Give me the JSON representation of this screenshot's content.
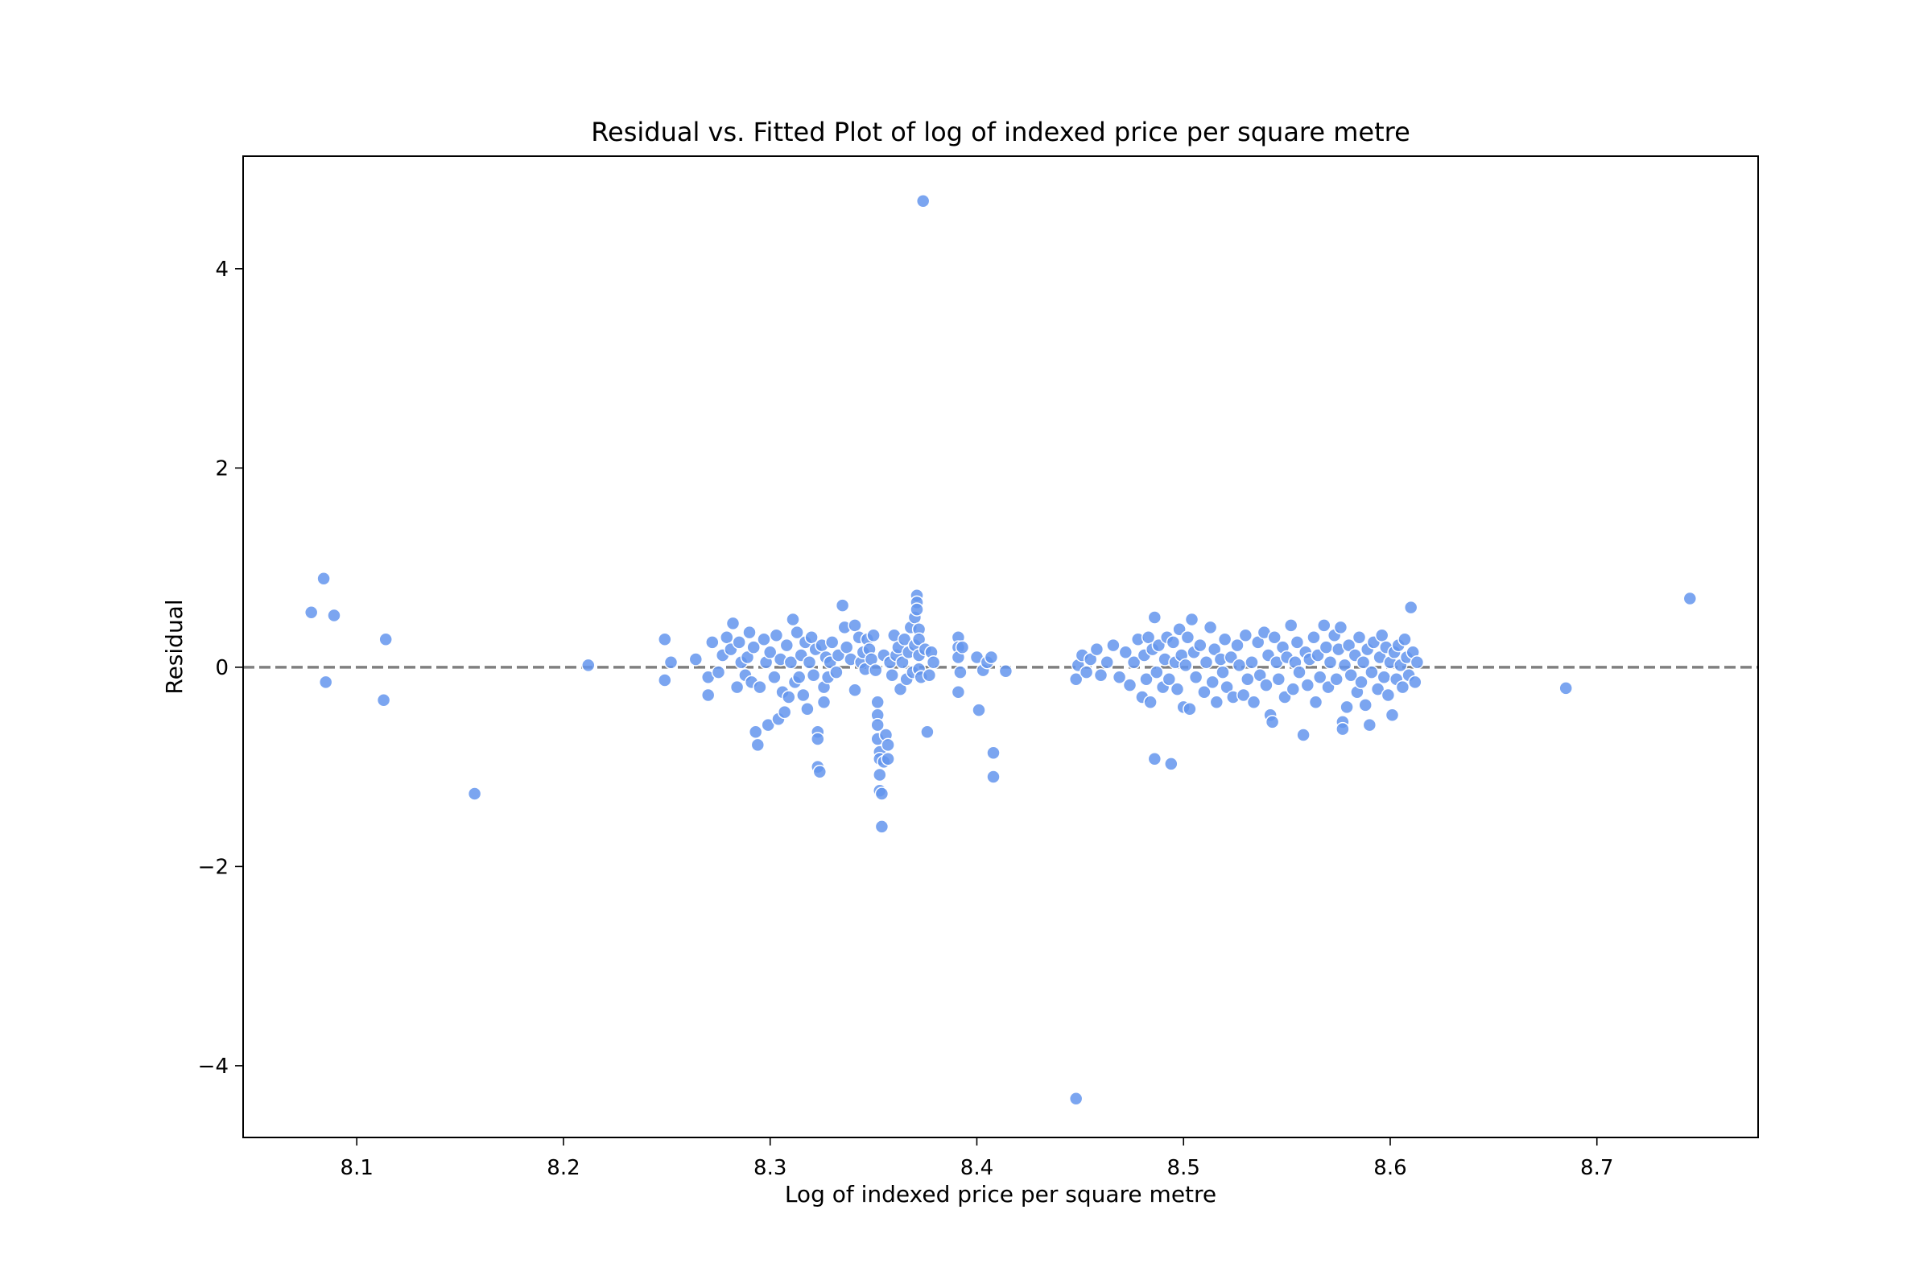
{
  "chart_data": {
    "type": "scatter",
    "title": "Residual vs. Fitted Plot of log of indexed price per square metre",
    "xlabel": "Log of indexed price per square metre",
    "ylabel": "Residual",
    "xlim": [
      8.045,
      8.778
    ],
    "ylim": [
      -4.72,
      5.13
    ],
    "xticks": [
      8.1,
      8.2,
      8.3,
      8.4,
      8.5,
      8.6,
      8.7
    ],
    "xtick_labels": [
      "8.1",
      "8.2",
      "8.3",
      "8.4",
      "8.5",
      "8.6",
      "8.7"
    ],
    "yticks": [
      -4,
      -2,
      0,
      2,
      4
    ],
    "ytick_labels": [
      "−4",
      "−2",
      "0",
      "2",
      "4"
    ],
    "reference_line": {
      "y": 0,
      "style": "dashed",
      "color": "#808080"
    },
    "point_color": "#6495ED",
    "grid": false,
    "legend": "none",
    "points": [
      [
        8.078,
        0.55
      ],
      [
        8.084,
        0.89
      ],
      [
        8.089,
        0.52
      ],
      [
        8.085,
        -0.15
      ],
      [
        8.114,
        0.28
      ],
      [
        8.113,
        -0.33
      ],
      [
        8.157,
        -1.27
      ],
      [
        8.212,
        0.02
      ],
      [
        8.249,
        0.28
      ],
      [
        8.249,
        -0.13
      ],
      [
        8.252,
        0.05
      ],
      [
        8.264,
        0.08
      ],
      [
        8.27,
        -0.28
      ],
      [
        8.27,
        -0.1
      ],
      [
        8.272,
        0.25
      ],
      [
        8.275,
        -0.05
      ],
      [
        8.277,
        0.12
      ],
      [
        8.279,
        0.3
      ],
      [
        8.281,
        0.18
      ],
      [
        8.282,
        0.44
      ],
      [
        8.284,
        -0.2
      ],
      [
        8.285,
        0.25
      ],
      [
        8.286,
        0.05
      ],
      [
        8.288,
        -0.08
      ],
      [
        8.289,
        0.1
      ],
      [
        8.29,
        0.35
      ],
      [
        8.291,
        -0.15
      ],
      [
        8.292,
        0.2
      ],
      [
        8.293,
        -0.65
      ],
      [
        8.294,
        -0.78
      ],
      [
        8.295,
        -0.2
      ],
      [
        8.297,
        0.28
      ],
      [
        8.298,
        0.05
      ],
      [
        8.299,
        -0.58
      ],
      [
        8.3,
        0.15
      ],
      [
        8.302,
        -0.1
      ],
      [
        8.303,
        0.32
      ],
      [
        8.304,
        -0.52
      ],
      [
        8.305,
        0.08
      ],
      [
        8.306,
        -0.25
      ],
      [
        8.307,
        -0.45
      ],
      [
        8.308,
        0.22
      ],
      [
        8.309,
        -0.3
      ],
      [
        8.31,
        0.05
      ],
      [
        8.311,
        0.48
      ],
      [
        8.312,
        -0.15
      ],
      [
        8.313,
        0.35
      ],
      [
        8.314,
        -0.1
      ],
      [
        8.315,
        0.12
      ],
      [
        8.316,
        -0.28
      ],
      [
        8.317,
        0.25
      ],
      [
        8.318,
        -0.42
      ],
      [
        8.319,
        0.05
      ],
      [
        8.32,
        0.3
      ],
      [
        8.321,
        -0.08
      ],
      [
        8.322,
        0.18
      ],
      [
        8.323,
        -0.65
      ],
      [
        8.323,
        -0.72
      ],
      [
        8.323,
        -1.0
      ],
      [
        8.324,
        -1.05
      ],
      [
        8.325,
        0.22
      ],
      [
        8.326,
        -0.35
      ],
      [
        8.326,
        -0.2
      ],
      [
        8.327,
        0.1
      ],
      [
        8.328,
        -0.1
      ],
      [
        8.329,
        0.05
      ],
      [
        8.33,
        0.25
      ],
      [
        8.332,
        -0.05
      ],
      [
        8.333,
        0.12
      ],
      [
        8.335,
        0.62
      ],
      [
        8.336,
        0.4
      ],
      [
        8.337,
        0.2
      ],
      [
        8.339,
        0.08
      ],
      [
        8.341,
        -0.23
      ],
      [
        8.341,
        0.42
      ],
      [
        8.343,
        0.3
      ],
      [
        8.344,
        0.05
      ],
      [
        8.345,
        0.15
      ],
      [
        8.346,
        -0.02
      ],
      [
        8.347,
        0.28
      ],
      [
        8.348,
        0.18
      ],
      [
        8.349,
        0.08
      ],
      [
        8.35,
        0.32
      ],
      [
        8.351,
        -0.03
      ],
      [
        8.352,
        -0.35
      ],
      [
        8.352,
        -0.48
      ],
      [
        8.352,
        -0.58
      ],
      [
        8.352,
        -0.72
      ],
      [
        8.353,
        -0.85
      ],
      [
        8.353,
        -0.92
      ],
      [
        8.353,
        -1.08
      ],
      [
        8.353,
        -1.24
      ],
      [
        8.354,
        -1.27
      ],
      [
        8.354,
        -1.6
      ],
      [
        8.355,
        0.12
      ],
      [
        8.355,
        -0.95
      ],
      [
        8.356,
        -0.68
      ],
      [
        8.357,
        -0.78
      ],
      [
        8.357,
        -0.92
      ],
      [
        8.358,
        0.05
      ],
      [
        8.359,
        -0.08
      ],
      [
        8.36,
        0.32
      ],
      [
        8.361,
        0.12
      ],
      [
        8.362,
        0.2
      ],
      [
        8.363,
        -0.22
      ],
      [
        8.364,
        0.05
      ],
      [
        8.365,
        0.28
      ],
      [
        8.366,
        -0.12
      ],
      [
        8.367,
        0.15
      ],
      [
        8.368,
        0.4
      ],
      [
        8.369,
        -0.05
      ],
      [
        8.37,
        0.22
      ],
      [
        8.37,
        0.5
      ],
      [
        8.371,
        0.72
      ],
      [
        8.371,
        0.65
      ],
      [
        8.371,
        0.58
      ],
      [
        8.372,
        0.38
      ],
      [
        8.372,
        0.28
      ],
      [
        8.372,
        0.12
      ],
      [
        8.372,
        -0.02
      ],
      [
        8.373,
        -0.1
      ],
      [
        8.374,
        4.68
      ],
      [
        8.375,
        0.18
      ],
      [
        8.376,
        -0.65
      ],
      [
        8.377,
        -0.08
      ],
      [
        8.378,
        0.15
      ],
      [
        8.379,
        0.05
      ],
      [
        8.391,
        0.3
      ],
      [
        8.391,
        0.2
      ],
      [
        8.391,
        0.1
      ],
      [
        8.391,
        -0.25
      ],
      [
        8.392,
        -0.05
      ],
      [
        8.393,
        0.2
      ],
      [
        8.4,
        0.1
      ],
      [
        8.401,
        -0.43
      ],
      [
        8.403,
        -0.03
      ],
      [
        8.405,
        0.05
      ],
      [
        8.407,
        0.1
      ],
      [
        8.408,
        -0.86
      ],
      [
        8.408,
        -1.1
      ],
      [
        8.414,
        -0.04
      ],
      [
        8.448,
        -4.33
      ],
      [
        8.448,
        -0.12
      ],
      [
        8.449,
        0.02
      ],
      [
        8.451,
        0.12
      ],
      [
        8.453,
        -0.05
      ],
      [
        8.455,
        0.08
      ],
      [
        8.458,
        0.18
      ],
      [
        8.46,
        -0.08
      ],
      [
        8.463,
        0.05
      ],
      [
        8.466,
        0.22
      ],
      [
        8.469,
        -0.1
      ],
      [
        8.472,
        0.15
      ],
      [
        8.474,
        -0.18
      ],
      [
        8.476,
        0.05
      ],
      [
        8.478,
        0.28
      ],
      [
        8.48,
        -0.3
      ],
      [
        8.481,
        0.12
      ],
      [
        8.482,
        -0.12
      ],
      [
        8.483,
        0.3
      ],
      [
        8.484,
        -0.35
      ],
      [
        8.485,
        0.18
      ],
      [
        8.486,
        0.5
      ],
      [
        8.486,
        -0.92
      ],
      [
        8.487,
        -0.05
      ],
      [
        8.488,
        0.22
      ],
      [
        8.49,
        -0.2
      ],
      [
        8.491,
        0.08
      ],
      [
        8.492,
        0.3
      ],
      [
        8.493,
        -0.12
      ],
      [
        8.494,
        -0.97
      ],
      [
        8.495,
        0.25
      ],
      [
        8.496,
        0.05
      ],
      [
        8.497,
        -0.22
      ],
      [
        8.498,
        0.38
      ],
      [
        8.499,
        0.12
      ],
      [
        8.5,
        -0.4
      ],
      [
        8.501,
        0.02
      ],
      [
        8.502,
        0.3
      ],
      [
        8.503,
        -0.42
      ],
      [
        8.504,
        0.48
      ],
      [
        8.505,
        0.15
      ],
      [
        8.506,
        -0.1
      ],
      [
        8.508,
        0.22
      ],
      [
        8.51,
        -0.25
      ],
      [
        8.511,
        0.05
      ],
      [
        8.513,
        0.4
      ],
      [
        8.514,
        -0.15
      ],
      [
        8.515,
        0.18
      ],
      [
        8.516,
        -0.35
      ],
      [
        8.518,
        0.08
      ],
      [
        8.519,
        -0.05
      ],
      [
        8.52,
        0.28
      ],
      [
        8.521,
        -0.2
      ],
      [
        8.523,
        0.1
      ],
      [
        8.524,
        -0.3
      ],
      [
        8.526,
        0.22
      ],
      [
        8.527,
        0.02
      ],
      [
        8.529,
        -0.28
      ],
      [
        8.53,
        0.32
      ],
      [
        8.531,
        -0.12
      ],
      [
        8.533,
        0.05
      ],
      [
        8.534,
        -0.35
      ],
      [
        8.536,
        0.25
      ],
      [
        8.537,
        -0.08
      ],
      [
        8.539,
        0.35
      ],
      [
        8.54,
        -0.18
      ],
      [
        8.541,
        0.12
      ],
      [
        8.542,
        -0.48
      ],
      [
        8.543,
        -0.55
      ],
      [
        8.544,
        0.3
      ],
      [
        8.545,
        0.05
      ],
      [
        8.546,
        -0.12
      ],
      [
        8.548,
        0.2
      ],
      [
        8.549,
        -0.3
      ],
      [
        8.55,
        0.1
      ],
      [
        8.552,
        0.42
      ],
      [
        8.553,
        -0.22
      ],
      [
        8.554,
        0.05
      ],
      [
        8.555,
        0.25
      ],
      [
        8.556,
        -0.05
      ],
      [
        8.558,
        -0.68
      ],
      [
        8.559,
        0.15
      ],
      [
        8.56,
        -0.18
      ],
      [
        8.561,
        0.08
      ],
      [
        8.563,
        0.3
      ],
      [
        8.564,
        -0.35
      ],
      [
        8.565,
        0.12
      ],
      [
        8.566,
        -0.1
      ],
      [
        8.568,
        0.42
      ],
      [
        8.569,
        0.2
      ],
      [
        8.57,
        -0.2
      ],
      [
        8.571,
        0.05
      ],
      [
        8.573,
        0.32
      ],
      [
        8.574,
        -0.12
      ],
      [
        8.575,
        0.18
      ],
      [
        8.576,
        0.4
      ],
      [
        8.577,
        -0.55
      ],
      [
        8.577,
        -0.62
      ],
      [
        8.578,
        0.02
      ],
      [
        8.579,
        -0.4
      ],
      [
        8.58,
        0.22
      ],
      [
        8.581,
        -0.08
      ],
      [
        8.583,
        0.12
      ],
      [
        8.584,
        -0.25
      ],
      [
        8.585,
        0.3
      ],
      [
        8.586,
        -0.15
      ],
      [
        8.587,
        0.05
      ],
      [
        8.588,
        -0.38
      ],
      [
        8.589,
        0.18
      ],
      [
        8.59,
        -0.58
      ],
      [
        8.591,
        -0.05
      ],
      [
        8.592,
        0.25
      ],
      [
        8.594,
        -0.22
      ],
      [
        8.595,
        0.1
      ],
      [
        8.596,
        0.32
      ],
      [
        8.597,
        -0.1
      ],
      [
        8.598,
        0.2
      ],
      [
        8.599,
        -0.28
      ],
      [
        8.6,
        0.05
      ],
      [
        8.601,
        -0.48
      ],
      [
        8.602,
        0.15
      ],
      [
        8.603,
        -0.12
      ],
      [
        8.604,
        0.22
      ],
      [
        8.605,
        0.02
      ],
      [
        8.606,
        -0.2
      ],
      [
        8.607,
        0.28
      ],
      [
        8.608,
        0.1
      ],
      [
        8.609,
        -0.08
      ],
      [
        8.61,
        0.6
      ],
      [
        8.611,
        0.15
      ],
      [
        8.612,
        -0.15
      ],
      [
        8.613,
        0.05
      ],
      [
        8.685,
        -0.21
      ],
      [
        8.745,
        0.69
      ]
    ]
  }
}
